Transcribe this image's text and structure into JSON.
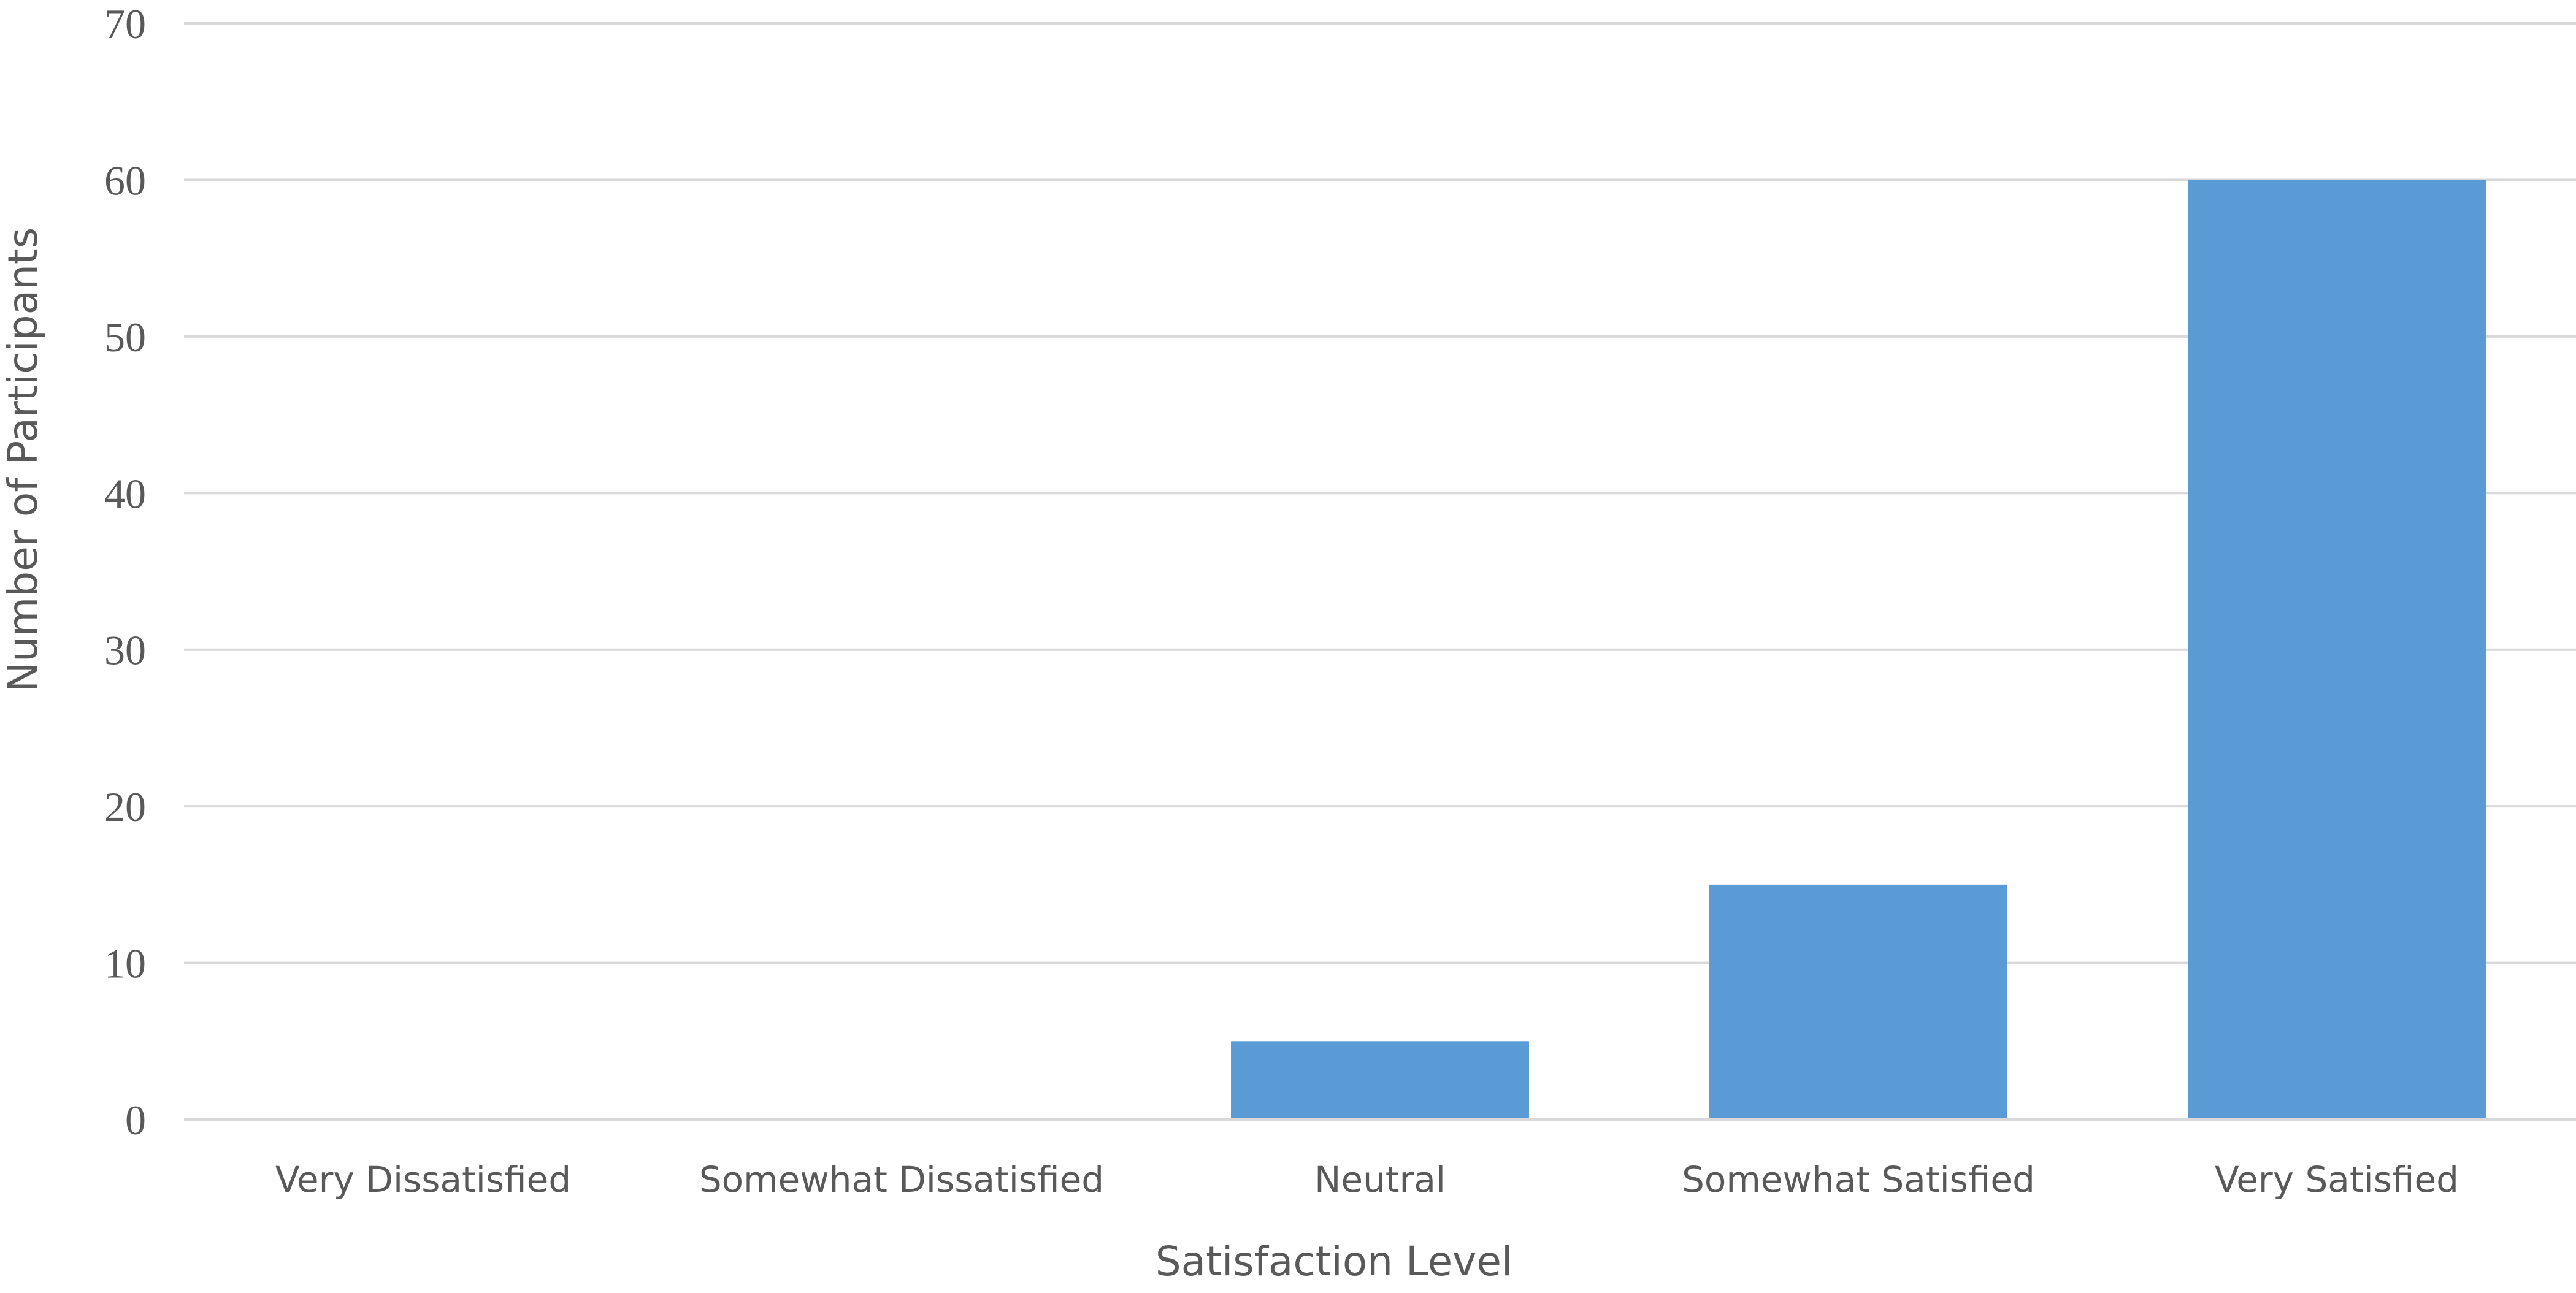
{
  "chart_data": {
    "type": "bar",
    "categories": [
      "Very Dissatisfied",
      "Somewhat Dissatisfied",
      "Neutral",
      "Somewhat Satisfied",
      "Very Satisfied"
    ],
    "values": [
      0,
      0,
      5,
      15,
      60
    ],
    "xlabel": "Satisfaction Level",
    "ylabel": "Number of Participants",
    "ylim": [
      0,
      70
    ],
    "yticks": [
      0,
      10,
      20,
      30,
      40,
      50,
      60,
      70
    ],
    "grid": true,
    "legend": "none",
    "colors": {
      "bar": "#5b9bd5",
      "grid": "#d9d9d9",
      "text": "#595959"
    }
  }
}
